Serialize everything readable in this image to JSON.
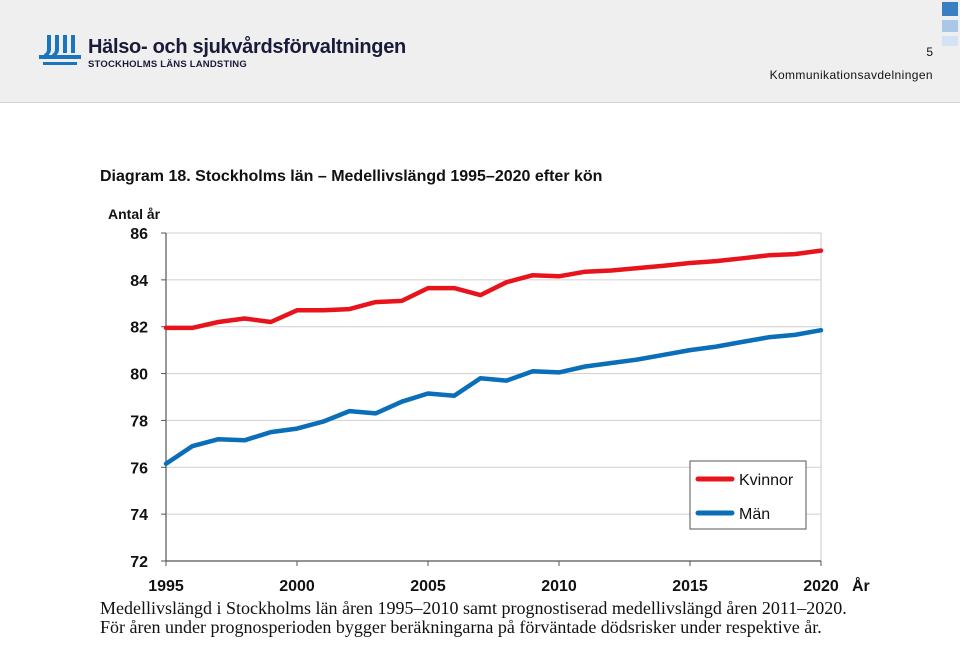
{
  "header": {
    "org_name": "Hälso- och sjukvårdsförvaltningen",
    "org_sub": "STOCKHOLMS LÄNS LANDSTING",
    "page_number": "5",
    "department": "Kommunikationsavdelningen",
    "colors": {
      "logo": "#1b75bb",
      "deco_blue": "#3a7fc4",
      "deco_light": "#a9c8e8"
    }
  },
  "chart_data": {
    "type": "line",
    "title": "Diagram 18. Stockholms län – Medellivslängd 1995–2020 efter kön",
    "ylabel": "Antal år",
    "xlabel": "År",
    "ylim": [
      72,
      86
    ],
    "xlim": [
      1995,
      2020
    ],
    "yticks": [
      72,
      74,
      76,
      78,
      80,
      82,
      84,
      86
    ],
    "xticks": [
      1995,
      2000,
      2005,
      2010,
      2015,
      2020
    ],
    "grid": true,
    "legend_position": "bottom-right",
    "x": [
      1995,
      1996,
      1997,
      1998,
      1999,
      2000,
      2001,
      2002,
      2003,
      2004,
      2005,
      2006,
      2007,
      2008,
      2009,
      2010,
      2011,
      2012,
      2013,
      2014,
      2015,
      2016,
      2017,
      2018,
      2019,
      2020
    ],
    "series": [
      {
        "name": "Kvinnor",
        "color": "#e8141c",
        "values": [
          81.95,
          81.95,
          82.2,
          82.35,
          82.2,
          82.7,
          82.7,
          82.75,
          83.05,
          83.1,
          83.65,
          83.65,
          83.35,
          83.9,
          84.2,
          84.15,
          84.35,
          84.4,
          84.5,
          84.6,
          84.72,
          84.8,
          84.92,
          85.05,
          85.1,
          85.25
        ]
      },
      {
        "name": "Män",
        "color": "#0a6fb8",
        "values": [
          76.15,
          76.9,
          77.2,
          77.15,
          77.5,
          77.65,
          77.95,
          78.4,
          78.3,
          78.8,
          79.15,
          79.05,
          79.8,
          79.7,
          80.1,
          80.05,
          80.3,
          80.45,
          80.6,
          80.8,
          81.0,
          81.15,
          81.35,
          81.55,
          81.65,
          81.85
        ]
      }
    ]
  },
  "caption": "Medellivslängd i Stockholms län åren 1995–2010 samt prognostiserad medellivslängd åren 2011–2020. För åren under prognosperioden bygger beräkningarna på förväntade dödsrisker under respektive år."
}
